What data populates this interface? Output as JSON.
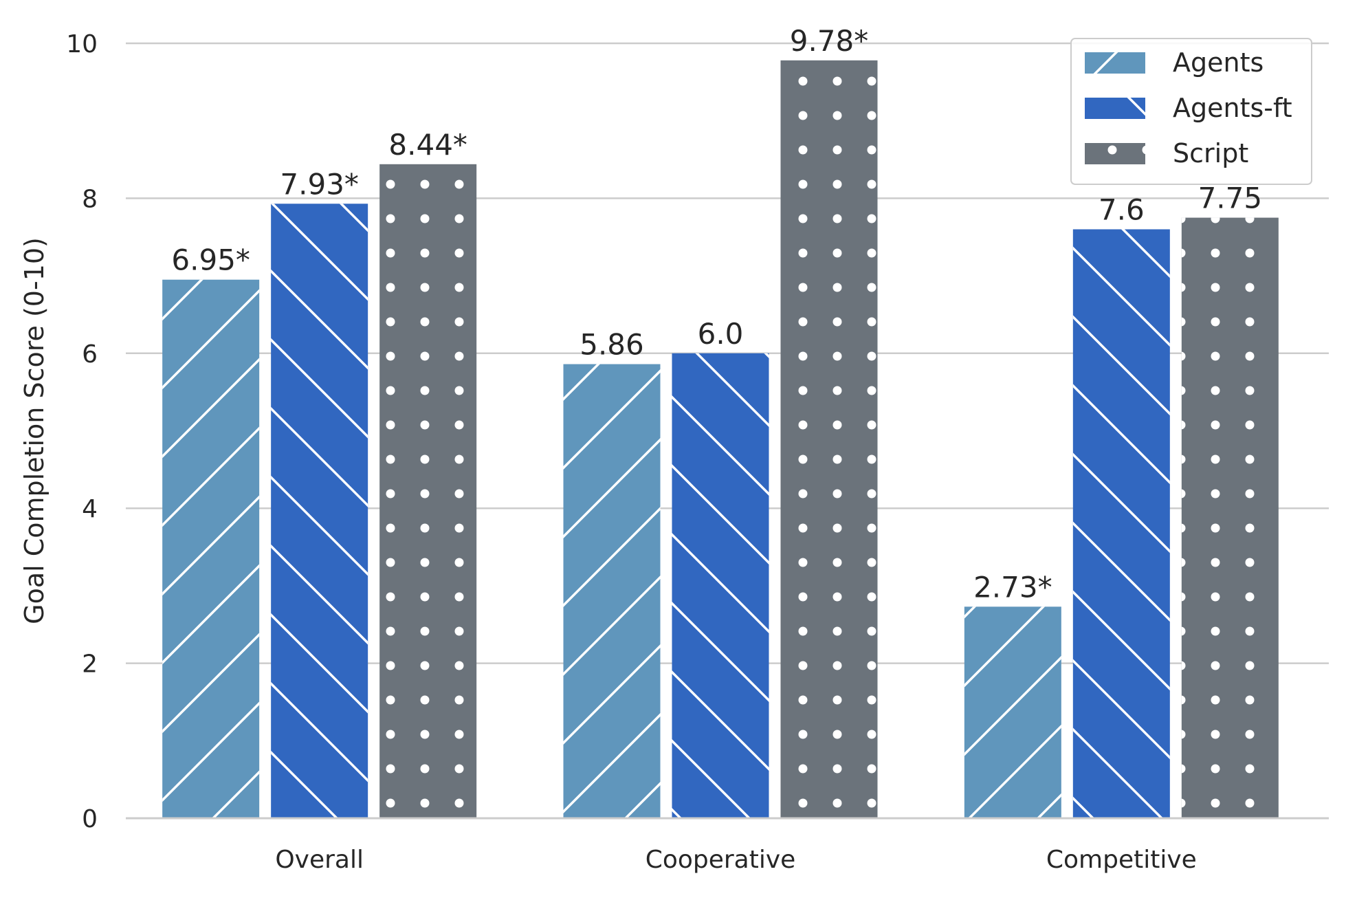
{
  "chart_data": {
    "type": "bar",
    "title": "",
    "xlabel": "",
    "ylabel": "Goal Completion Score (0-10)",
    "ylim": [
      0,
      10
    ],
    "yticks": [
      0,
      2,
      4,
      6,
      8,
      10
    ],
    "grid": "horizontal",
    "legend_position": "top-right",
    "categories": [
      "Overall",
      "Cooperative",
      "Competitive"
    ],
    "series": [
      {
        "name": "Agents",
        "values": [
          6.95,
          5.86,
          2.73
        ],
        "labels": [
          "6.95*",
          "5.86",
          "2.73*"
        ],
        "color": "#6096bc",
        "pattern": "forward-hatch"
      },
      {
        "name": "Agents-ft",
        "values": [
          7.93,
          6.0,
          7.6
        ],
        "labels": [
          "7.93*",
          "6.0",
          "7.6"
        ],
        "color": "#3167c0",
        "pattern": "back-hatch"
      },
      {
        "name": "Script",
        "values": [
          8.44,
          9.78,
          7.75
        ],
        "labels": [
          "8.44*",
          "9.78*",
          "7.75"
        ],
        "color": "#6b737b",
        "pattern": "dots"
      }
    ]
  }
}
